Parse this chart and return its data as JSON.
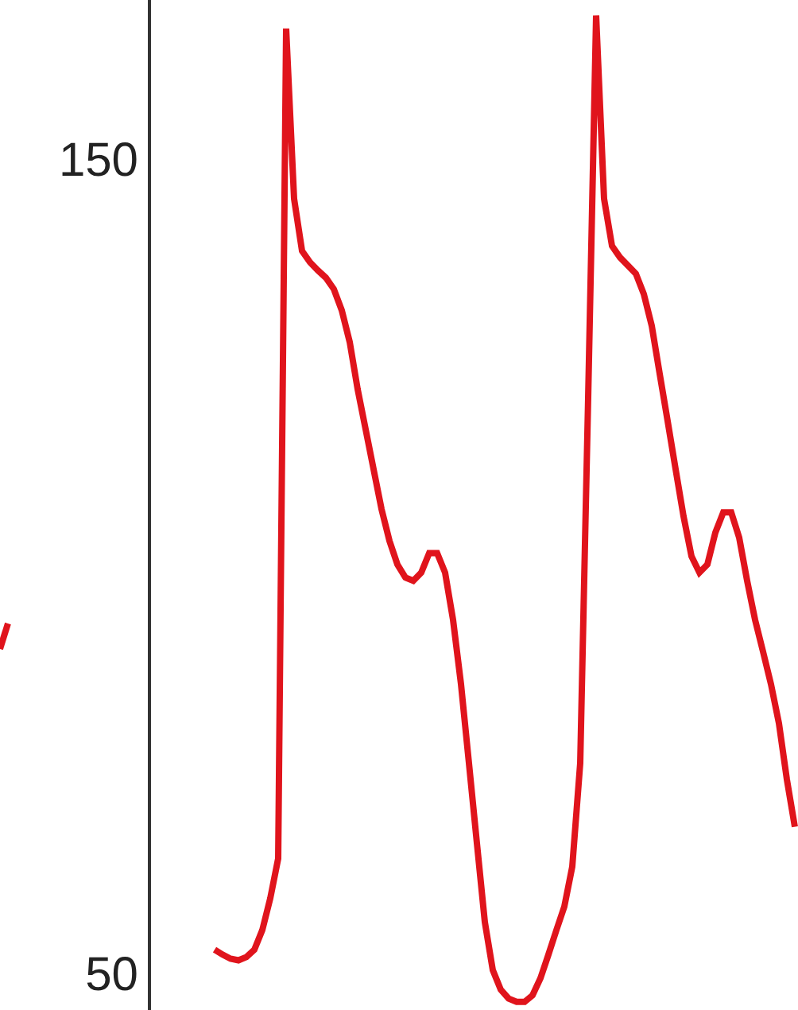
{
  "chart_data": {
    "type": "line",
    "categories": [
      null,
      null,
      null,
      null,
      null,
      null,
      null,
      null,
      null,
      null,
      null,
      null,
      null,
      null,
      null,
      null,
      null,
      null,
      null,
      null,
      null,
      null,
      null,
      null,
      null,
      null,
      null,
      null,
      null,
      null,
      null,
      null,
      null,
      null,
      null,
      null,
      null,
      null,
      null,
      null,
      null,
      null,
      null,
      null,
      null,
      null,
      null,
      null,
      null,
      null,
      null,
      null,
      null,
      null,
      null,
      null,
      null,
      null,
      null,
      null,
      null,
      null,
      null,
      null,
      null,
      null,
      null,
      null,
      null,
      null,
      null,
      null,
      null,
      null
    ],
    "series": [
      {
        "color": "#e0141c",
        "values": [
          52.9,
          52.3,
          51.8,
          51.6,
          52.0,
          52.9,
          55.3,
          59.2,
          64.1,
          166,
          145.1,
          138.7,
          137.3,
          136.3,
          135.4,
          134.0,
          131.4,
          127.5,
          121.7,
          116.8,
          111.9,
          107.0,
          103.1,
          100.2,
          98.6,
          98.2,
          99.2,
          101.6,
          101.6,
          99.2,
          93.4,
          85.5,
          75.8,
          66.0,
          56.3,
          50.4,
          48.0,
          46.9,
          46.5,
          46.5,
          47.3,
          49.4,
          52.3,
          55.3,
          58.2,
          63.1,
          75.8,
          120.7,
          167.6,
          145.1,
          139.3,
          137.9,
          136.9,
          135.9,
          133.4,
          129.5,
          123.6,
          117.8,
          111.9,
          106.1,
          101.2,
          99.2,
          100.2,
          104.1,
          106.6,
          106.6,
          103.5,
          98.2,
          93.4,
          89.5,
          85.5,
          80.7,
          73.8,
          68.0
        ]
      }
    ],
    "ylim": [
      45.5,
      169.5
    ],
    "yticks": [
      50,
      150
    ],
    "tick_labels": "y",
    "legend": false,
    "marker": "none",
    "line_style": "solid"
  }
}
